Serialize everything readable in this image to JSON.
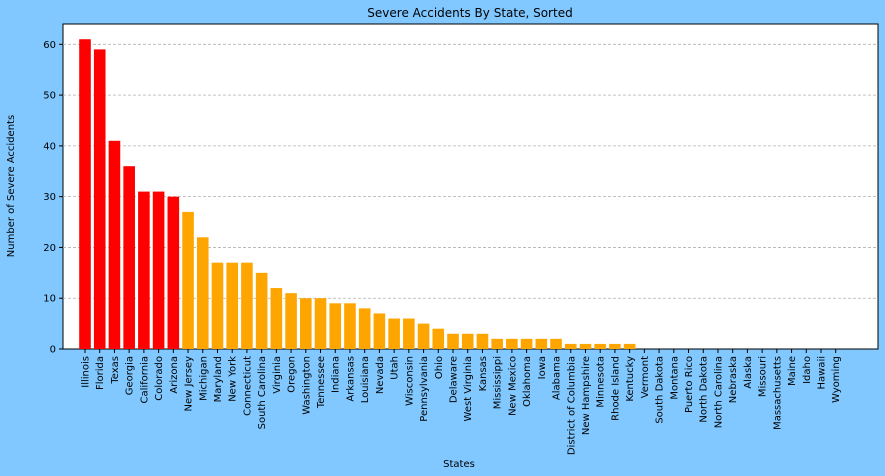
{
  "chart_data": {
    "type": "bar",
    "title": "Severe Accidents By State, Sorted",
    "xlabel": "States",
    "ylabel": "Number of Severe Accidents",
    "ylim": [
      0,
      64
    ],
    "yticks": [
      0,
      10,
      20,
      30,
      40,
      50,
      60
    ],
    "grid": "horizontal dashed",
    "colors": {
      "figure_background": "#80c8ff",
      "plot_background": "#ffffff",
      "highlight_bar": "#ff0000",
      "bar": "#ffa500",
      "grid": "#b0b0b0"
    },
    "highlight_count": 7,
    "categories": [
      "Illinois",
      "Florida",
      "Texas",
      "Georgia",
      "California",
      "Colorado",
      "Arizona",
      "New Jersey",
      "Michigan",
      "Maryland",
      "New York",
      "Connecticut",
      "South Carolina",
      "Virginia",
      "Oregon",
      "Washington",
      "Tennessee",
      "Indiana",
      "Arkansas",
      "Louisiana",
      "Nevada",
      "Utah",
      "Wisconsin",
      "Pennsylvania",
      "Ohio",
      "Delaware",
      "West Virginia",
      "Kansas",
      "Mississippi",
      "New Mexico",
      "Oklahoma",
      "Iowa",
      "Alabama",
      "District of Columbia",
      "New Hampshire",
      "Minnesota",
      "Rhode Island",
      "Kentucky",
      "Vermont",
      "South Dakota",
      "Montana",
      "Puerto Rico",
      "North Dakota",
      "North Carolina",
      "Nebraska",
      "Alaska",
      "Missouri",
      "Massachusetts",
      "Maine",
      "Idaho",
      "Hawaii",
      "Wyoming"
    ],
    "values": [
      61,
      59,
      41,
      36,
      31,
      31,
      30,
      27,
      22,
      17,
      17,
      17,
      15,
      12,
      11,
      10,
      10,
      9,
      9,
      8,
      7,
      6,
      6,
      5,
      4,
      3,
      3,
      3,
      2,
      2,
      2,
      2,
      2,
      1,
      1,
      1,
      1,
      1,
      0,
      0,
      0,
      0,
      0,
      0,
      0,
      0,
      0,
      0,
      0,
      0,
      0,
      0
    ]
  }
}
